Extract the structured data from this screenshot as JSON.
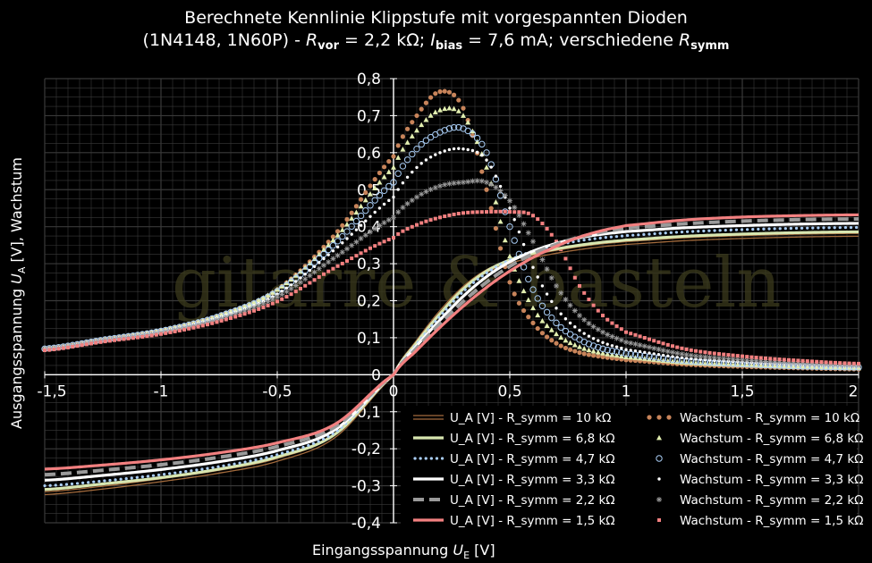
{
  "title": {
    "line1": "Berechnete Kennlinie Klippstufe mit vorgespannten Dioden",
    "line2_a": "(1N4148, 1N60P) - ",
    "line2_r": "R",
    "line2_rsub": "vor",
    "line2_b": " = 2,2 kΩ; ",
    "line2_i": "I",
    "line2_isub": "bias",
    "line2_c": " = 7,6 mA; verschiedene ",
    "line2_r2": "R",
    "line2_r2sub": "symm"
  },
  "watermark": "gitarre & basteln",
  "chart_data": {
    "type": "line",
    "xlabel": "Eingangsspannung U_E [V]",
    "ylabel": "Ausgangsspannung U_A [V], Wachstum",
    "xlim": [
      -1.5,
      2
    ],
    "ylim": [
      -0.4,
      0.8
    ],
    "x_ticks": [
      "-1,5",
      "-1",
      "-0,5",
      "0",
      "0,5",
      "1",
      "1,5",
      "2"
    ],
    "y_ticks": [
      "-0,4",
      "-0,3",
      "-0,2",
      "-0,1",
      "0",
      "0,1",
      "0,2",
      "0,3",
      "0,4",
      "0,5",
      "0,6",
      "0,7",
      "0,8"
    ],
    "grid": true,
    "legend_position": "bottom-right",
    "x": [
      -1.5,
      -1.25,
      -1.0,
      -0.75,
      -0.5,
      -0.25,
      0.0,
      0.1,
      0.2,
      0.3,
      0.4,
      0.5,
      0.6,
      0.7,
      0.8,
      0.9,
      1.0,
      1.25,
      1.5,
      1.75,
      2.0
    ],
    "series": [
      {
        "name": "U_A [V] - R_symm = 10 kΩ",
        "kind": "ua",
        "color": "#a26a3c",
        "style": "double-line",
        "values": [
          -0.32,
          -0.305,
          -0.285,
          -0.262,
          -0.23,
          -0.165,
          0.0,
          0.09,
          0.17,
          0.235,
          0.28,
          0.305,
          0.32,
          0.332,
          0.342,
          0.35,
          0.356,
          0.366,
          0.372,
          0.376,
          0.378
        ]
      },
      {
        "name": "U_A [V] - R_symm = 6,8 kΩ",
        "kind": "ua",
        "color": "#d8e6b0",
        "style": "line",
        "values": [
          -0.31,
          -0.295,
          -0.278,
          -0.255,
          -0.222,
          -0.16,
          0.0,
          0.087,
          0.165,
          0.232,
          0.28,
          0.31,
          0.328,
          0.34,
          0.35,
          0.358,
          0.364,
          0.374,
          0.38,
          0.384,
          0.386
        ]
      },
      {
        "name": "U_A [V] - R_symm = 4,7 kΩ",
        "kind": "ua",
        "color": "#a9cdf5",
        "style": "dots",
        "values": [
          -0.3,
          -0.287,
          -0.27,
          -0.248,
          -0.216,
          -0.155,
          0.0,
          0.083,
          0.158,
          0.225,
          0.275,
          0.31,
          0.334,
          0.35,
          0.362,
          0.37,
          0.376,
          0.386,
          0.392,
          0.396,
          0.398
        ]
      },
      {
        "name": "U_A [V] - R_symm = 3,3 kΩ",
        "kind": "ua",
        "color": "#ffffff",
        "style": "line",
        "values": [
          -0.285,
          -0.272,
          -0.256,
          -0.235,
          -0.205,
          -0.148,
          0.0,
          0.078,
          0.148,
          0.212,
          0.265,
          0.305,
          0.334,
          0.355,
          0.37,
          0.38,
          0.387,
          0.397,
          0.403,
          0.407,
          0.409
        ]
      },
      {
        "name": "U_A [V] - R_symm = 2,2 kΩ",
        "kind": "ua",
        "color": "#9a9a9a",
        "style": "dashed",
        "values": [
          -0.27,
          -0.258,
          -0.243,
          -0.223,
          -0.194,
          -0.14,
          0.0,
          0.072,
          0.138,
          0.198,
          0.25,
          0.293,
          0.327,
          0.352,
          0.372,
          0.386,
          0.396,
          0.408,
          0.415,
          0.419,
          0.421
        ]
      },
      {
        "name": "U_A [V] - R_symm = 1,5 kΩ",
        "kind": "ua",
        "color": "#f28080",
        "style": "line",
        "values": [
          -0.255,
          -0.244,
          -0.23,
          -0.211,
          -0.184,
          -0.133,
          0.0,
          0.066,
          0.128,
          0.185,
          0.236,
          0.28,
          0.317,
          0.347,
          0.372,
          0.39,
          0.403,
          0.418,
          0.426,
          0.43,
          0.432
        ]
      },
      {
        "name": "Wachstum - R_symm = 10 kΩ",
        "kind": "gr",
        "color": "#c8845a",
        "marker": "dot",
        "values": [
          0.07,
          0.095,
          0.12,
          0.16,
          0.23,
          0.38,
          0.59,
          0.7,
          0.765,
          0.72,
          0.5,
          0.25,
          0.14,
          0.085,
          0.06,
          0.048,
          0.04,
          0.028,
          0.022,
          0.018,
          0.015
        ]
      },
      {
        "name": "Wachstum - R_symm = 6,8 kΩ",
        "kind": "gr",
        "color": "#e2efb0",
        "marker": "triangle",
        "values": [
          0.07,
          0.095,
          0.12,
          0.16,
          0.23,
          0.37,
          0.56,
          0.66,
          0.715,
          0.7,
          0.56,
          0.32,
          0.18,
          0.11,
          0.075,
          0.058,
          0.048,
          0.033,
          0.026,
          0.021,
          0.018
        ]
      },
      {
        "name": "Wachstum - R_symm = 4,7 kΩ",
        "kind": "gr",
        "color": "#a9cdf5",
        "marker": "circle",
        "values": [
          0.07,
          0.094,
          0.118,
          0.158,
          0.225,
          0.355,
          0.52,
          0.61,
          0.655,
          0.665,
          0.6,
          0.4,
          0.23,
          0.14,
          0.095,
          0.07,
          0.057,
          0.038,
          0.029,
          0.023,
          0.02
        ]
      },
      {
        "name": "Wachstum - R_symm = 3,3 kΩ",
        "kind": "gr",
        "color": "#ffffff",
        "marker": "small-dot",
        "values": [
          0.07,
          0.094,
          0.117,
          0.155,
          0.218,
          0.34,
          0.48,
          0.56,
          0.6,
          0.61,
          0.58,
          0.45,
          0.29,
          0.18,
          0.12,
          0.087,
          0.068,
          0.045,
          0.034,
          0.027,
          0.022
        ]
      },
      {
        "name": "Wachstum - R_symm = 2,2 kΩ",
        "kind": "gr",
        "color": "#9a9a9a",
        "marker": "star",
        "values": [
          0.068,
          0.092,
          0.114,
          0.15,
          0.21,
          0.318,
          0.425,
          0.48,
          0.51,
          0.52,
          0.52,
          0.47,
          0.36,
          0.24,
          0.16,
          0.115,
          0.088,
          0.055,
          0.04,
          0.031,
          0.025
        ]
      },
      {
        "name": "Wachstum - R_symm = 1,5 kΩ",
        "kind": "gr",
        "color": "#f28080",
        "marker": "square",
        "values": [
          0.066,
          0.089,
          0.11,
          0.144,
          0.198,
          0.29,
          0.37,
          0.405,
          0.425,
          0.437,
          0.44,
          0.44,
          0.43,
          0.36,
          0.24,
          0.16,
          0.115,
          0.07,
          0.05,
          0.038,
          0.03
        ]
      }
    ]
  }
}
